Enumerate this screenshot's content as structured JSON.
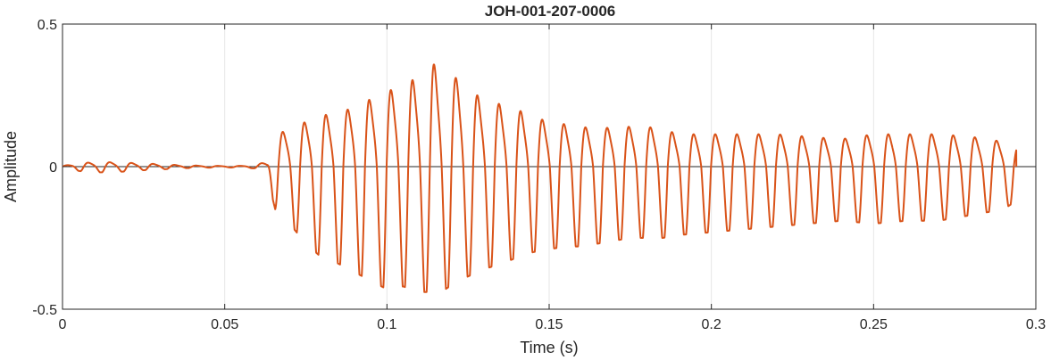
{
  "chart_data": {
    "type": "line",
    "title": "JOH-001-207-0006",
    "xlabel": "Time (s)",
    "ylabel": "Amplitude",
    "xlim": [
      0,
      0.3
    ],
    "ylim": [
      -0.5,
      0.5
    ],
    "xticks": [
      0,
      0.05,
      0.1,
      0.15,
      0.2,
      0.25,
      0.3
    ],
    "xtick_labels": [
      "0",
      "0.05",
      "0.1",
      "0.15",
      "0.2",
      "0.25",
      "0.3"
    ],
    "yticks": [
      -0.5,
      0,
      0.5
    ],
    "ytick_labels": [
      "-0.5",
      "0",
      "0.5"
    ],
    "grid": true,
    "series": [
      {
        "color": "#d95319",
        "x": [
          0,
          0.006,
          0.012,
          0.018,
          0.024,
          0.03,
          0.036,
          0.042,
          0.048,
          0.054,
          0.059,
          0.063,
          0.066,
          0.07,
          0.075,
          0.08,
          0.085,
          0.09,
          0.095,
          0.1,
          0.105,
          0.11,
          0.114,
          0.118,
          0.122,
          0.126,
          0.13,
          0.135,
          0.14,
          0.145,
          0.15,
          0.155,
          0.16,
          0.165,
          0.17,
          0.175,
          0.18,
          0.185,
          0.19,
          0.2,
          0.21,
          0.22,
          0.23,
          0.24,
          0.25,
          0.26,
          0.27,
          0.28,
          0.29,
          0.294
        ],
        "envelope_upper": [
          0.003,
          0.015,
          0.018,
          0.017,
          0.013,
          0.01,
          0.006,
          0.004,
          0.003,
          0.003,
          0.005,
          0.02,
          0.13,
          0.15,
          0.18,
          0.21,
          0.2,
          0.25,
          0.27,
          0.3,
          0.33,
          0.36,
          0.42,
          0.34,
          0.36,
          0.3,
          0.27,
          0.25,
          0.23,
          0.2,
          0.18,
          0.17,
          0.16,
          0.15,
          0.16,
          0.16,
          0.16,
          0.15,
          0.13,
          0.13,
          0.13,
          0.13,
          0.12,
          0.11,
          0.13,
          0.13,
          0.13,
          0.12,
          0.1,
          0.08
        ],
        "envelope_lower": [
          -0.004,
          -0.017,
          -0.02,
          -0.018,
          -0.013,
          -0.01,
          -0.006,
          -0.004,
          -0.003,
          -0.003,
          -0.006,
          -0.03,
          -0.17,
          -0.2,
          -0.27,
          -0.32,
          -0.34,
          -0.37,
          -0.4,
          -0.43,
          -0.42,
          -0.44,
          -0.44,
          -0.43,
          -0.4,
          -0.38,
          -0.36,
          -0.34,
          -0.32,
          -0.3,
          -0.29,
          -0.28,
          -0.28,
          -0.27,
          -0.26,
          -0.25,
          -0.25,
          -0.25,
          -0.24,
          -0.23,
          -0.22,
          -0.21,
          -0.2,
          -0.19,
          -0.2,
          -0.19,
          -0.19,
          -0.17,
          -0.15,
          -0.12
        ],
        "dominant_frequency_hz": 150
      }
    ]
  }
}
